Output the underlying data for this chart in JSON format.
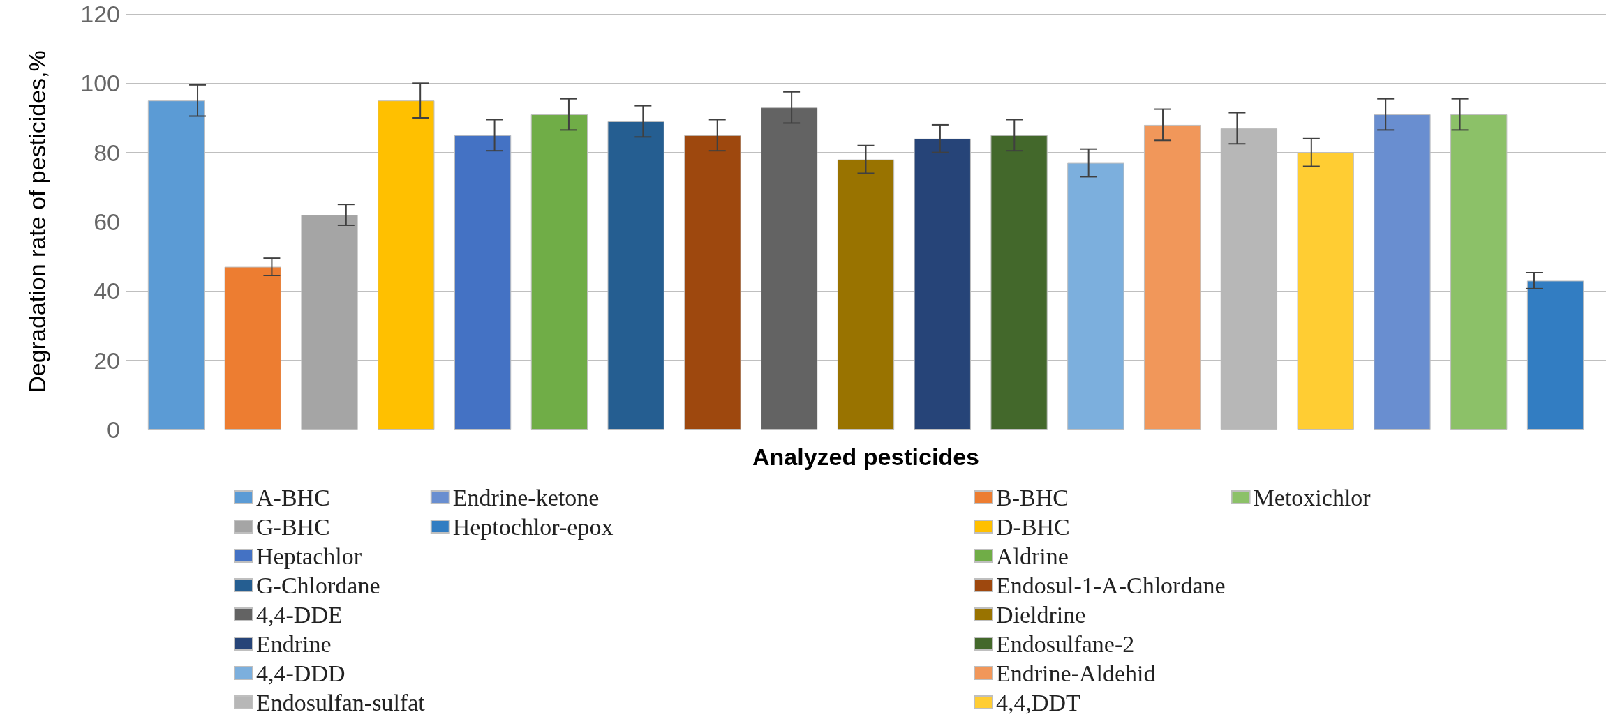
{
  "chart_data": {
    "type": "bar",
    "xlabel": "Analyzed pesticides",
    "ylabel": "Degradation rate of pesticides,%",
    "categories": [
      null
    ],
    "ylim": [
      0,
      120
    ],
    "yticks": [
      0,
      20,
      40,
      60,
      80,
      100,
      120
    ],
    "grid": "y",
    "legend": "bottom",
    "series": [
      {
        "name": "A-BHC",
        "color": "#5b9bd5",
        "values": [
          95
        ],
        "errors": [
          4.5
        ]
      },
      {
        "name": "B-BHC",
        "color": "#ed7d31",
        "values": [
          47
        ],
        "errors": [
          2.5
        ]
      },
      {
        "name": "G-BHC",
        "color": "#a5a5a5",
        "values": [
          62
        ],
        "errors": [
          3
        ]
      },
      {
        "name": "D-BHC",
        "color": "#ffc000",
        "values": [
          95
        ],
        "errors": [
          5
        ]
      },
      {
        "name": "Heptachlor",
        "color": "#4472c4",
        "values": [
          85
        ],
        "errors": [
          4.5
        ]
      },
      {
        "name": "Aldrine",
        "color": "#70ad47",
        "values": [
          91
        ],
        "errors": [
          4.5
        ]
      },
      {
        "name": "G-Chlordane",
        "color": "#255e91",
        "values": [
          89
        ],
        "errors": [
          4.5
        ]
      },
      {
        "name": "Endosul-1-A-Chlordane",
        "color": "#9e480e",
        "values": [
          85
        ],
        "errors": [
          4.5
        ]
      },
      {
        "name": "4,4-DDE",
        "color": "#636363",
        "values": [
          93
        ],
        "errors": [
          4.5
        ]
      },
      {
        "name": "Dieldrine",
        "color": "#997300",
        "values": [
          78
        ],
        "errors": [
          4
        ]
      },
      {
        "name": "Endrine",
        "color": "#264478",
        "values": [
          84
        ],
        "errors": [
          4
        ]
      },
      {
        "name": "Endosulfane-2",
        "color": "#43682b",
        "values": [
          85
        ],
        "errors": [
          4.5
        ]
      },
      {
        "name": "4,4-DDD",
        "color": "#7cafdd",
        "values": [
          77
        ],
        "errors": [
          4
        ]
      },
      {
        "name": "Endrine-Aldehid",
        "color": "#f1975a",
        "values": [
          88
        ],
        "errors": [
          4.5
        ]
      },
      {
        "name": "Endosulfan-sulfat",
        "color": "#b7b7b7",
        "values": [
          87
        ],
        "errors": [
          4.5
        ]
      },
      {
        "name": "4,4,DDT",
        "color": "#ffcd33",
        "values": [
          80
        ],
        "errors": [
          4
        ]
      },
      {
        "name": "Endrine-ketone",
        "color": "#698ed0",
        "values": [
          91
        ],
        "errors": [
          4.5
        ]
      },
      {
        "name": "Metoxichlor",
        "color": "#8cc168",
        "values": [
          91
        ],
        "errors": [
          4.5
        ]
      },
      {
        "name": "Heptochlor-epox",
        "color": "#327dc2",
        "values": [
          43
        ],
        "errors": [
          2.3
        ]
      }
    ]
  }
}
